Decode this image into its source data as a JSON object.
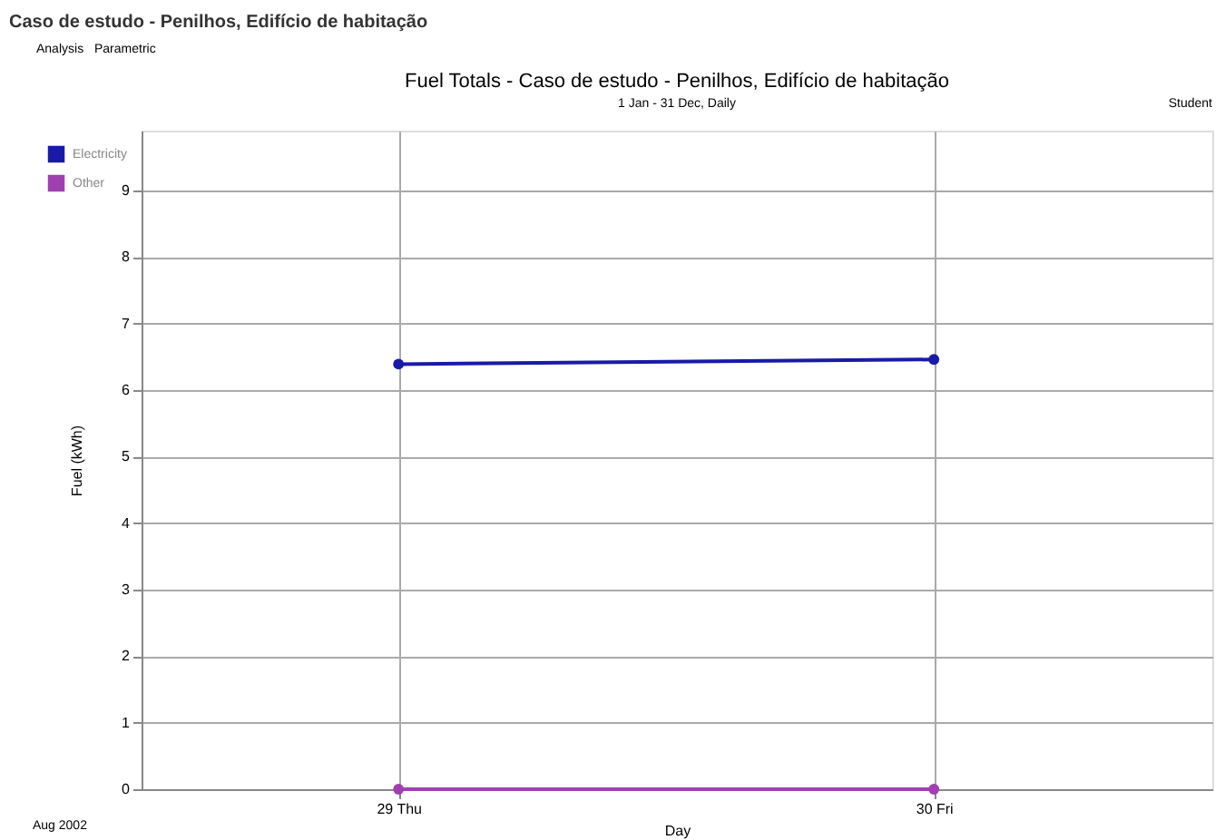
{
  "chart_data": {
    "type": "line",
    "title": "Fuel Totals - Caso de estudo - Penilhos, Edifício de habitação",
    "subtitle": "1 Jan - 31 Dec, Daily",
    "xlabel": "Day",
    "ylabel": "Fuel (kWh)",
    "x": [
      29,
      30
    ],
    "series": [
      {
        "name": "Electricity",
        "color": "#1a1aa8",
        "values": [
          6.39,
          6.46
        ]
      },
      {
        "name": "Other",
        "color": "#a040b0",
        "values": [
          0,
          0
        ]
      }
    ],
    "xlim": [
      28.52,
      30.52
    ],
    "xticks": [
      {
        "value": 29,
        "label": "29 Thu"
      },
      {
        "value": 30,
        "label": "30 Fri"
      }
    ],
    "ylim": [
      0,
      9.9
    ],
    "yticks": [
      0,
      1,
      2,
      3,
      4,
      5,
      6,
      7,
      8,
      9
    ],
    "grid": true,
    "legend": "top left",
    "marker": "circle",
    "line_style": "solid",
    "annotations": [
      "Caso de estudo - Penilhos, Edifício de habitação",
      "Analysis",
      "Parametric",
      "Student",
      "Aug 2002"
    ]
  }
}
